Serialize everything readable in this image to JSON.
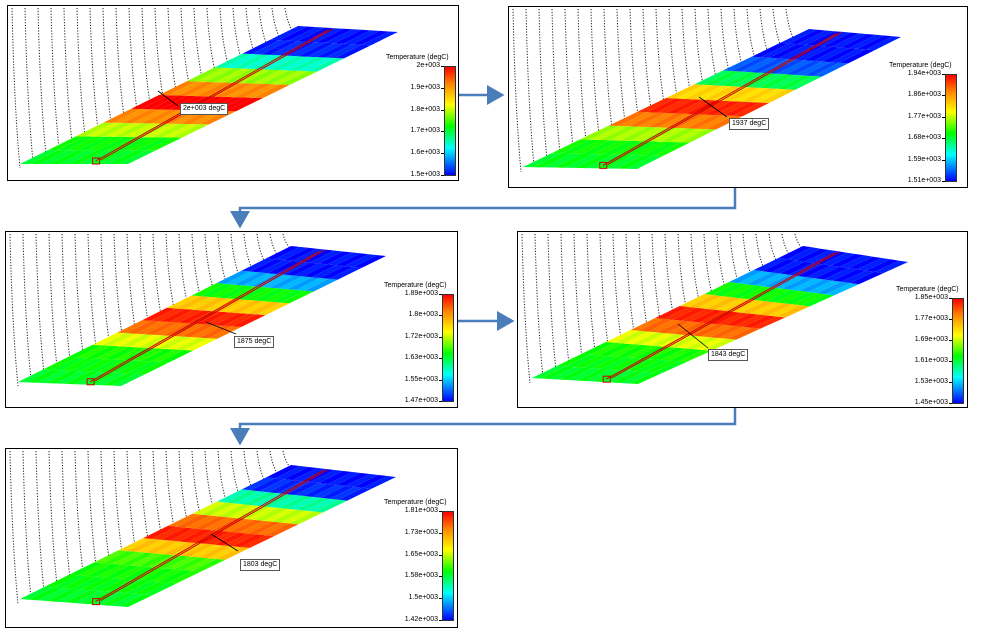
{
  "colors": {
    "arrow": "#4a7ebb",
    "hot": "#ff0000",
    "cold": "#0000ff"
  },
  "panels": [
    {
      "legend_title": "Temperature (degC)",
      "ticks": [
        "2e+003",
        "1.9e+003",
        "1.8e+003",
        "1.7e+003",
        "1.6e+003",
        "1.5e+003"
      ],
      "probe": "2e+003 degC"
    },
    {
      "legend_title": "Temperature (degC)",
      "ticks": [
        "1.94e+003",
        "1.86e+003",
        "1.77e+003",
        "1.68e+003",
        "1.59e+003",
        "1.51e+003"
      ],
      "probe": "1937 degC"
    },
    {
      "legend_title": "Temperature (degC)",
      "ticks": [
        "1.89e+003",
        "1.8e+003",
        "1.72e+003",
        "1.63e+003",
        "1.55e+003",
        "1.47e+003"
      ],
      "probe": "1875 degC"
    },
    {
      "legend_title": "Temperature (degC)",
      "ticks": [
        "1.85e+003",
        "1.77e+003",
        "1.69e+003",
        "1.61e+003",
        "1.53e+003",
        "1.45e+003"
      ],
      "probe": "1843 degC"
    },
    {
      "legend_title": "Temperature (degC)",
      "ticks": [
        "1.81e+003",
        "1.73e+003",
        "1.65e+003",
        "1.58e+003",
        "1.5e+003",
        "1.42e+003"
      ],
      "probe": "1803 degC"
    }
  ]
}
